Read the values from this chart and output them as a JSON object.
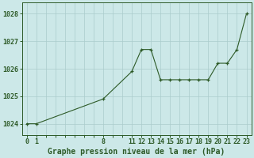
{
  "x": [
    0,
    1,
    8,
    11,
    12,
    13,
    14,
    15,
    16,
    17,
    18,
    19,
    20,
    21,
    22,
    23
  ],
  "y": [
    1024.0,
    1024.0,
    1024.9,
    1025.9,
    1026.7,
    1026.7,
    1025.6,
    1025.6,
    1025.6,
    1025.6,
    1025.6,
    1025.6,
    1026.2,
    1026.2,
    1026.7,
    1028.0
  ],
  "xticks_shown": [
    0,
    1,
    8,
    11,
    12,
    13,
    14,
    15,
    16,
    17,
    18,
    19,
    20,
    21,
    22,
    23
  ],
  "yticks": [
    1024,
    1025,
    1026,
    1027,
    1028
  ],
  "line_color": "#2d5a27",
  "marker": "+",
  "bg_color": "#cce8e8",
  "grid_color": "#aacccc",
  "xlabel": "Graphe pression niveau de la mer (hPa)",
  "xlim": [
    -0.5,
    23.5
  ],
  "ylim": [
    1023.6,
    1028.4
  ],
  "tick_fontsize": 6.0,
  "label_fontsize": 7.0
}
